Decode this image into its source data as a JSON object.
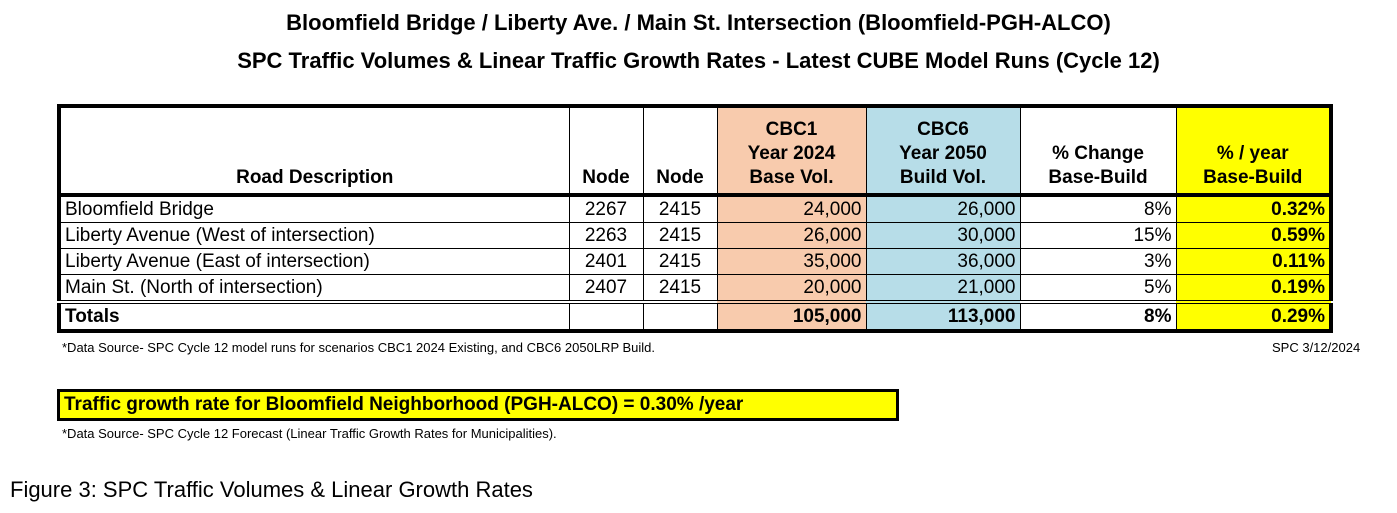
{
  "title": {
    "line1": "Bloomfield Bridge / Liberty Ave. / Main St. Intersection (Bloomfield-PGH-ALCO)",
    "line2": "SPC Traffic Volumes & Linear Traffic Growth Rates - Latest CUBE Model Runs (Cycle 12)"
  },
  "table": {
    "headers": {
      "desc": "Road Description",
      "node1": "Node",
      "node2": "Node",
      "cbc1": [
        "CBC1",
        "Year 2024",
        "Base Vol."
      ],
      "cbc6": [
        "CBC6",
        "Year 2050",
        "Build Vol."
      ],
      "change": [
        "% Change",
        "Base-Build"
      ],
      "year": [
        "% / year",
        "Base-Build"
      ]
    },
    "rows": [
      {
        "desc": "Bloomfield Bridge",
        "node1": "2267",
        "node2": "2415",
        "base": "24,000",
        "build": "26,000",
        "change": "8%",
        "year": "0.32%"
      },
      {
        "desc": "Liberty Avenue (West of intersection)",
        "node1": "2263",
        "node2": "2415",
        "base": "26,000",
        "build": "30,000",
        "change": "15%",
        "year": "0.59%"
      },
      {
        "desc": "Liberty Avenue (East of intersection)",
        "node1": "2401",
        "node2": "2415",
        "base": "35,000",
        "build": "36,000",
        "change": "3%",
        "year": "0.11%"
      },
      {
        "desc": "Main St. (North of intersection)",
        "node1": "2407",
        "node2": "2415",
        "base": "20,000",
        "build": "21,000",
        "change": "5%",
        "year": "0.19%"
      }
    ],
    "totals": {
      "desc": "Totals",
      "base": "105,000",
      "build": "113,000",
      "change": "8%",
      "year": "0.29%"
    }
  },
  "footnote1": "*Data Source- SPC Cycle 12 model runs for scenarios CBC1 2024 Existing, and CBC6 2050LRP Build.",
  "date_note": "SPC 3/12/2024",
  "growth_box": "Traffic growth rate for Bloomfield Neighborhood (PGH-ALCO) = 0.30% /year",
  "footnote2": "*Data Source- SPC Cycle 12 Forecast (Linear Traffic Growth Rates for Municipalities).",
  "caption": "Figure 3: SPC Traffic Volumes & Linear Growth Rates",
  "colors": {
    "base": "#f8cbad",
    "build": "#b7dde8",
    "highlight": "#ffff00"
  }
}
